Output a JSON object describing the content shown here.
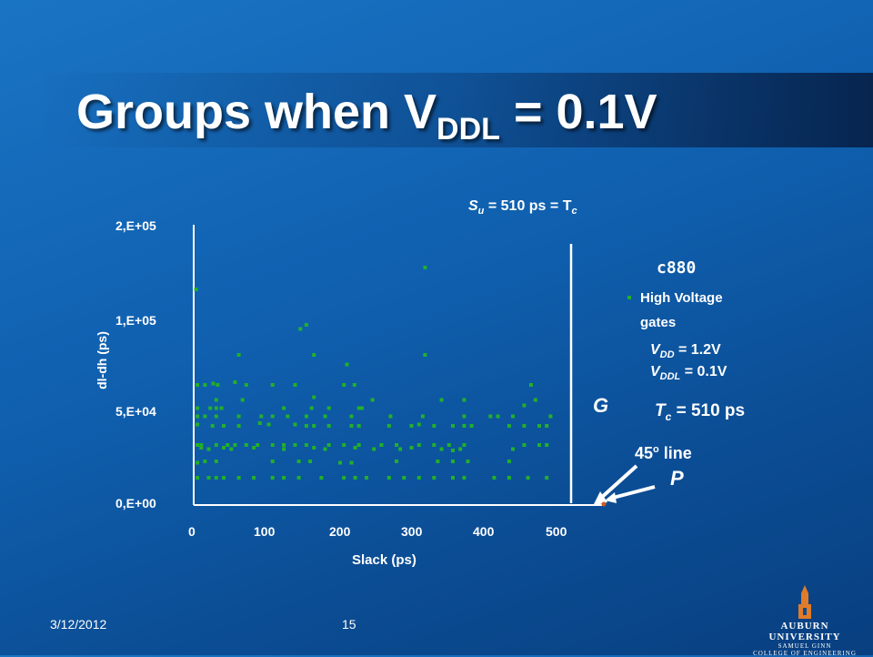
{
  "slide": {
    "title_main": "Groups when V",
    "title_sub": "DDL",
    "title_end": " = 0.1V",
    "date": "3/12/2012",
    "page": "15",
    "logo_line1": "AUBURN UNIVERSITY",
    "logo_line2": "SAMUEL GINN",
    "logo_line3": "COLLEGE OF ENGINEERING"
  },
  "annotations": {
    "su_s": "S",
    "su_sub": "u",
    "su_mid": " = 510 ps = T",
    "su_tsub": "c",
    "circuit": "c880",
    "legend_line1": "High Voltage",
    "legend_line2": "gates",
    "vdd_v": "V",
    "vdd_sub": "DD",
    "vdd_val": " = 1.2V",
    "vddl_v": "V",
    "vddl_sub": "DDL",
    "vddl_val": " = 0.1V",
    "g_label": "G",
    "tc_t": "T",
    "tc_sub": "c",
    "tc_val": " = 510 ps",
    "line45_a": "45",
    "line45_sup": "o",
    "line45_b": " line",
    "p_label": "P"
  },
  "colors": {
    "points": "#22b02a",
    "axis": "#ffffff",
    "accent": "#d35a1e"
  },
  "chart_data": {
    "type": "scatter",
    "xlabel": "Slack (ps)",
    "ylabel": "dl-dh (ps)",
    "xlim": [
      0,
      510
    ],
    "ylim": [
      0,
      200000
    ],
    "xticks": [
      "0",
      "100",
      "200",
      "300",
      "400",
      "500"
    ],
    "yticks": [
      "0,E+00",
      "5,E+04",
      "1,E+05",
      "2,E+05"
    ],
    "threshold_x": 510,
    "series": [
      {
        "name": "High Voltage gates",
        "points": [
          [
            3,
            158000
          ],
          [
            308,
            174000
          ],
          [
            142,
            129000
          ],
          [
            150,
            132000
          ],
          [
            60,
            110000
          ],
          [
            160,
            110000
          ],
          [
            204,
            103000
          ],
          [
            308,
            110000
          ],
          [
            5,
            88000
          ],
          [
            15,
            88000
          ],
          [
            26,
            89000
          ],
          [
            32,
            88000
          ],
          [
            55,
            90000
          ],
          [
            70,
            88000
          ],
          [
            105,
            88000
          ],
          [
            135,
            88000
          ],
          [
            200,
            88000
          ],
          [
            214,
            88000
          ],
          [
            449,
            88000
          ],
          [
            30,
            77000
          ],
          [
            65,
            77000
          ],
          [
            160,
            79000
          ],
          [
            238,
            77000
          ],
          [
            330,
            77000
          ],
          [
            360,
            77000
          ],
          [
            455,
            77000
          ],
          [
            5,
            71000
          ],
          [
            22,
            71000
          ],
          [
            30,
            71000
          ],
          [
            37,
            71000
          ],
          [
            120,
            71000
          ],
          [
            157,
            71000
          ],
          [
            180,
            71000
          ],
          [
            220,
            71000
          ],
          [
            224,
            71000
          ],
          [
            440,
            73000
          ],
          [
            5,
            65000
          ],
          [
            15,
            65000
          ],
          [
            30,
            65000
          ],
          [
            60,
            65000
          ],
          [
            90,
            65000
          ],
          [
            105,
            65000
          ],
          [
            125,
            65000
          ],
          [
            150,
            65000
          ],
          [
            175,
            65000
          ],
          [
            210,
            65000
          ],
          [
            262,
            65000
          ],
          [
            305,
            65000
          ],
          [
            360,
            65000
          ],
          [
            395,
            65000
          ],
          [
            405,
            65000
          ],
          [
            425,
            65000
          ],
          [
            475,
            65000
          ],
          [
            5,
            59000
          ],
          [
            25,
            58000
          ],
          [
            40,
            58000
          ],
          [
            60,
            58000
          ],
          [
            88,
            60000
          ],
          [
            100,
            59000
          ],
          [
            135,
            59000
          ],
          [
            150,
            58000
          ],
          [
            160,
            58000
          ],
          [
            180,
            58000
          ],
          [
            210,
            58000
          ],
          [
            220,
            58000
          ],
          [
            260,
            58000
          ],
          [
            290,
            58000
          ],
          [
            300,
            59000
          ],
          [
            320,
            58000
          ],
          [
            345,
            58000
          ],
          [
            360,
            58000
          ],
          [
            370,
            58000
          ],
          [
            420,
            58000
          ],
          [
            440,
            58000
          ],
          [
            460,
            58000
          ],
          [
            470,
            58000
          ],
          [
            5,
            44000
          ],
          [
            10,
            44000
          ],
          [
            30,
            44000
          ],
          [
            45,
            44000
          ],
          [
            55,
            44000
          ],
          [
            70,
            44000
          ],
          [
            85,
            44000
          ],
          [
            105,
            44000
          ],
          [
            120,
            44000
          ],
          [
            135,
            44000
          ],
          [
            150,
            44000
          ],
          [
            180,
            44000
          ],
          [
            200,
            44000
          ],
          [
            220,
            44000
          ],
          [
            250,
            44000
          ],
          [
            270,
            44000
          ],
          [
            300,
            44000
          ],
          [
            320,
            44000
          ],
          [
            340,
            44000
          ],
          [
            360,
            44000
          ],
          [
            440,
            44000
          ],
          [
            460,
            44000
          ],
          [
            470,
            44000
          ],
          [
            10,
            42000
          ],
          [
            20,
            41000
          ],
          [
            40,
            42000
          ],
          [
            50,
            41000
          ],
          [
            80,
            42000
          ],
          [
            120,
            41000
          ],
          [
            160,
            42000
          ],
          [
            175,
            41000
          ],
          [
            215,
            42000
          ],
          [
            240,
            41000
          ],
          [
            275,
            41000
          ],
          [
            290,
            42000
          ],
          [
            330,
            41000
          ],
          [
            345,
            40000
          ],
          [
            355,
            41000
          ],
          [
            425,
            41000
          ],
          [
            5,
            31000
          ],
          [
            15,
            32000
          ],
          [
            30,
            32000
          ],
          [
            105,
            32000
          ],
          [
            140,
            32000
          ],
          [
            155,
            32000
          ],
          [
            195,
            31000
          ],
          [
            210,
            31000
          ],
          [
            270,
            32000
          ],
          [
            325,
            32000
          ],
          [
            345,
            32000
          ],
          [
            365,
            32000
          ],
          [
            420,
            32000
          ],
          [
            5,
            20000
          ],
          [
            20,
            20000
          ],
          [
            30,
            20000
          ],
          [
            40,
            20000
          ],
          [
            60,
            20000
          ],
          [
            80,
            20000
          ],
          [
            105,
            20000
          ],
          [
            120,
            20000
          ],
          [
            140,
            20000
          ],
          [
            170,
            20000
          ],
          [
            200,
            20000
          ],
          [
            215,
            20000
          ],
          [
            230,
            20000
          ],
          [
            260,
            20000
          ],
          [
            280,
            20000
          ],
          [
            300,
            20000
          ],
          [
            320,
            20000
          ],
          [
            345,
            20000
          ],
          [
            360,
            20000
          ],
          [
            400,
            20000
          ],
          [
            420,
            20000
          ],
          [
            445,
            20000
          ],
          [
            470,
            20000
          ]
        ]
      }
    ]
  }
}
